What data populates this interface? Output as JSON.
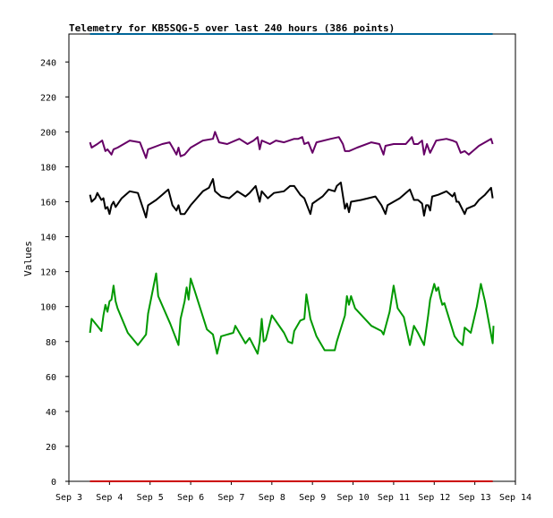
{
  "chart_data": {
    "type": "line",
    "title": "Telemetry for KB5SQG-5 over last 240 hours (386 points)",
    "xlabel": "",
    "ylabel": "Values",
    "ylim": [
      0,
      256
    ],
    "xlim": [
      "Sep 3",
      "Sep 14"
    ],
    "x_ticks": [
      "Sep 3",
      "Sep 4",
      "Sep 5",
      "Sep 6",
      "Sep 7",
      "Sep 8",
      "Sep 9",
      "Sep 10",
      "Sep 11",
      "Sep 12",
      "Sep 13",
      "Sep 14"
    ],
    "y_ticks": [
      0,
      20,
      40,
      60,
      80,
      100,
      120,
      140,
      160,
      180,
      200,
      220,
      240
    ],
    "grid": false,
    "legend": "none",
    "series": [
      {
        "color": "#006699",
        "points": [
          [
            3.52,
            256
          ],
          [
            13.44,
            256
          ]
        ]
      },
      {
        "color": "#660066",
        "points": [
          [
            3.52,
            194
          ],
          [
            3.56,
            191
          ],
          [
            3.7,
            193
          ],
          [
            3.82,
            195
          ],
          [
            3.9,
            189
          ],
          [
            3.95,
            190
          ],
          [
            4.05,
            187
          ],
          [
            4.1,
            190
          ],
          [
            4.2,
            191
          ],
          [
            4.5,
            195
          ],
          [
            4.75,
            194
          ],
          [
            4.9,
            185
          ],
          [
            4.95,
            190
          ],
          [
            5.3,
            193
          ],
          [
            5.48,
            194
          ],
          [
            5.58,
            190
          ],
          [
            5.65,
            187
          ],
          [
            5.7,
            191
          ],
          [
            5.75,
            186
          ],
          [
            5.85,
            187
          ],
          [
            6.0,
            191
          ],
          [
            6.3,
            195
          ],
          [
            6.55,
            196
          ],
          [
            6.6,
            200
          ],
          [
            6.7,
            194
          ],
          [
            6.9,
            193
          ],
          [
            7.2,
            196
          ],
          [
            7.4,
            193
          ],
          [
            7.55,
            195
          ],
          [
            7.65,
            197
          ],
          [
            7.7,
            190
          ],
          [
            7.75,
            195
          ],
          [
            7.95,
            193
          ],
          [
            8.1,
            195
          ],
          [
            8.3,
            194
          ],
          [
            8.55,
            196
          ],
          [
            8.65,
            196
          ],
          [
            8.75,
            197
          ],
          [
            8.8,
            193
          ],
          [
            8.9,
            194
          ],
          [
            9.0,
            188
          ],
          [
            9.1,
            194
          ],
          [
            9.45,
            196
          ],
          [
            9.65,
            197
          ],
          [
            9.75,
            193
          ],
          [
            9.8,
            189
          ],
          [
            9.9,
            189
          ],
          [
            10.1,
            191
          ],
          [
            10.45,
            194
          ],
          [
            10.65,
            193
          ],
          [
            10.75,
            187
          ],
          [
            10.8,
            192
          ],
          [
            11.0,
            193
          ],
          [
            11.3,
            193
          ],
          [
            11.45,
            197
          ],
          [
            11.5,
            193
          ],
          [
            11.6,
            193
          ],
          [
            11.7,
            195
          ],
          [
            11.75,
            187
          ],
          [
            11.82,
            193
          ],
          [
            11.9,
            188
          ],
          [
            12.05,
            195
          ],
          [
            12.3,
            196
          ],
          [
            12.45,
            195
          ],
          [
            12.55,
            194
          ],
          [
            12.65,
            188
          ],
          [
            12.75,
            189
          ],
          [
            12.85,
            187
          ],
          [
            12.95,
            189
          ],
          [
            13.1,
            192
          ],
          [
            13.25,
            194
          ],
          [
            13.4,
            196
          ],
          [
            13.44,
            193
          ]
        ]
      },
      {
        "color": "#000000",
        "points": [
          [
            3.52,
            164
          ],
          [
            3.56,
            160
          ],
          [
            3.65,
            162
          ],
          [
            3.7,
            165
          ],
          [
            3.8,
            161
          ],
          [
            3.85,
            162
          ],
          [
            3.9,
            156
          ],
          [
            3.95,
            157
          ],
          [
            4.0,
            153
          ],
          [
            4.05,
            158
          ],
          [
            4.1,
            160
          ],
          [
            4.15,
            157
          ],
          [
            4.3,
            162
          ],
          [
            4.5,
            166
          ],
          [
            4.7,
            165
          ],
          [
            4.9,
            151
          ],
          [
            4.95,
            158
          ],
          [
            5.15,
            161
          ],
          [
            5.3,
            164
          ],
          [
            5.45,
            167
          ],
          [
            5.55,
            158
          ],
          [
            5.65,
            155
          ],
          [
            5.7,
            158
          ],
          [
            5.75,
            153
          ],
          [
            5.85,
            153
          ],
          [
            6.0,
            158
          ],
          [
            6.3,
            166
          ],
          [
            6.45,
            168
          ],
          [
            6.55,
            173
          ],
          [
            6.6,
            166
          ],
          [
            6.75,
            163
          ],
          [
            6.95,
            162
          ],
          [
            7.15,
            166
          ],
          [
            7.35,
            163
          ],
          [
            7.45,
            165
          ],
          [
            7.6,
            169
          ],
          [
            7.7,
            160
          ],
          [
            7.75,
            166
          ],
          [
            7.9,
            162
          ],
          [
            8.05,
            165
          ],
          [
            8.3,
            166
          ],
          [
            8.45,
            169
          ],
          [
            8.55,
            169
          ],
          [
            8.7,
            164
          ],
          [
            8.8,
            162
          ],
          [
            8.9,
            156
          ],
          [
            8.95,
            153
          ],
          [
            9.0,
            159
          ],
          [
            9.25,
            163
          ],
          [
            9.4,
            167
          ],
          [
            9.55,
            166
          ],
          [
            9.6,
            169
          ],
          [
            9.7,
            171
          ],
          [
            9.8,
            156
          ],
          [
            9.85,
            159
          ],
          [
            9.9,
            154
          ],
          [
            9.95,
            160
          ],
          [
            10.2,
            161
          ],
          [
            10.55,
            163
          ],
          [
            10.7,
            158
          ],
          [
            10.8,
            153
          ],
          [
            10.85,
            158
          ],
          [
            11.15,
            162
          ],
          [
            11.4,
            167
          ],
          [
            11.5,
            161
          ],
          [
            11.6,
            161
          ],
          [
            11.7,
            159
          ],
          [
            11.75,
            152
          ],
          [
            11.8,
            158
          ],
          [
            11.85,
            158
          ],
          [
            11.9,
            155
          ],
          [
            11.95,
            163
          ],
          [
            12.1,
            164
          ],
          [
            12.3,
            166
          ],
          [
            12.45,
            163
          ],
          [
            12.5,
            165
          ],
          [
            12.55,
            160
          ],
          [
            12.6,
            160
          ],
          [
            12.75,
            153
          ],
          [
            12.8,
            156
          ],
          [
            13.0,
            158
          ],
          [
            13.1,
            161
          ],
          [
            13.25,
            164
          ],
          [
            13.4,
            168
          ],
          [
            13.44,
            162
          ]
        ]
      },
      {
        "color": "#009900",
        "points": [
          [
            3.52,
            85
          ],
          [
            3.56,
            93
          ],
          [
            3.7,
            89
          ],
          [
            3.8,
            86
          ],
          [
            3.85,
            95
          ],
          [
            3.9,
            101
          ],
          [
            3.95,
            97
          ],
          [
            4.0,
            103
          ],
          [
            4.05,
            104
          ],
          [
            4.1,
            112
          ],
          [
            4.15,
            103
          ],
          [
            4.2,
            99
          ],
          [
            4.45,
            85
          ],
          [
            4.7,
            78
          ],
          [
            4.9,
            84
          ],
          [
            4.95,
            96
          ],
          [
            5.15,
            119
          ],
          [
            5.2,
            106
          ],
          [
            5.5,
            90
          ],
          [
            5.7,
            78
          ],
          [
            5.75,
            93
          ],
          [
            5.85,
            103
          ],
          [
            5.9,
            111
          ],
          [
            5.95,
            104
          ],
          [
            6.0,
            116
          ],
          [
            6.1,
            109
          ],
          [
            6.4,
            87
          ],
          [
            6.55,
            84
          ],
          [
            6.65,
            73
          ],
          [
            6.75,
            83
          ],
          [
            7.05,
            85
          ],
          [
            7.1,
            89
          ],
          [
            7.35,
            79
          ],
          [
            7.45,
            82
          ],
          [
            7.65,
            73
          ],
          [
            7.7,
            80
          ],
          [
            7.75,
            93
          ],
          [
            7.8,
            80
          ],
          [
            7.85,
            81
          ],
          [
            8.0,
            95
          ],
          [
            8.3,
            85
          ],
          [
            8.4,
            80
          ],
          [
            8.5,
            79
          ],
          [
            8.55,
            86
          ],
          [
            8.7,
            92
          ],
          [
            8.8,
            93
          ],
          [
            8.85,
            107
          ],
          [
            8.95,
            93
          ],
          [
            9.1,
            83
          ],
          [
            9.3,
            75
          ],
          [
            9.55,
            75
          ],
          [
            9.6,
            80
          ],
          [
            9.8,
            95
          ],
          [
            9.85,
            106
          ],
          [
            9.9,
            101
          ],
          [
            9.95,
            106
          ],
          [
            10.05,
            99
          ],
          [
            10.45,
            89
          ],
          [
            10.7,
            86
          ],
          [
            10.75,
            84
          ],
          [
            10.9,
            97
          ],
          [
            11.0,
            112
          ],
          [
            11.1,
            99
          ],
          [
            11.25,
            94
          ],
          [
            11.4,
            78
          ],
          [
            11.5,
            89
          ],
          [
            11.6,
            85
          ],
          [
            11.75,
            78
          ],
          [
            11.85,
            95
          ],
          [
            11.9,
            104
          ],
          [
            12.0,
            113
          ],
          [
            12.05,
            109
          ],
          [
            12.1,
            111
          ],
          [
            12.15,
            105
          ],
          [
            12.2,
            101
          ],
          [
            12.25,
            102
          ],
          [
            12.5,
            83
          ],
          [
            12.6,
            80
          ],
          [
            12.7,
            78
          ],
          [
            12.75,
            88
          ],
          [
            12.8,
            87
          ],
          [
            12.9,
            85
          ],
          [
            13.05,
            100
          ],
          [
            13.15,
            113
          ],
          [
            13.25,
            103
          ],
          [
            13.44,
            79
          ],
          [
            13.46,
            89
          ]
        ]
      },
      {
        "color": "#cc0000",
        "points": [
          [
            3.52,
            0
          ],
          [
            13.44,
            0
          ]
        ]
      }
    ]
  }
}
